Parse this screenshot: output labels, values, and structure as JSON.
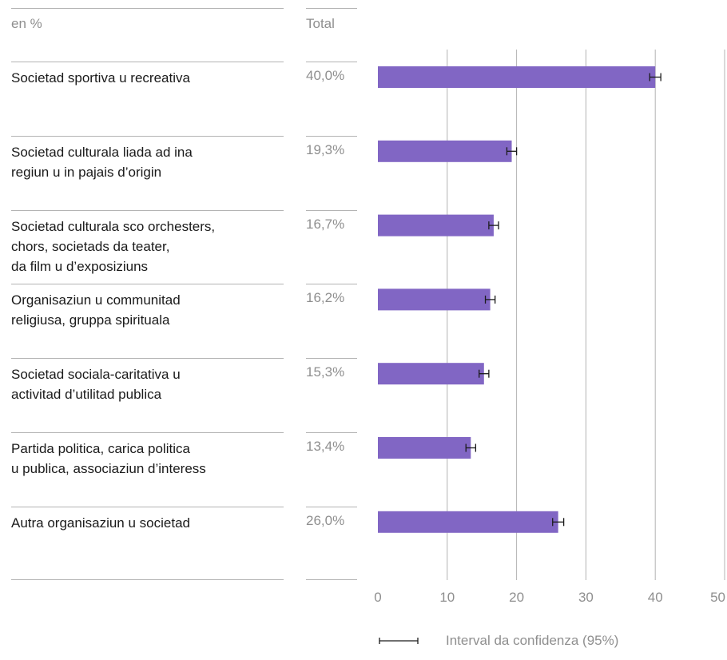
{
  "header": {
    "unit_label": "en %",
    "total_label": "Total"
  },
  "legend": {
    "ci_label": "Interval da confidenza (95%)"
  },
  "chart_data": {
    "type": "bar",
    "orientation": "horizontal",
    "categories": [
      "Societad sportiva u recreativa",
      "Societad culturala liada ad ina regiun u in pajais d’origin",
      "Societad culturala sco orchesters, chors, societads da teater, da film u d’exposiziuns",
      "Organisaziun u communitad religiusa, gruppa spirituala",
      "Societad sociala-caritativa u activitad d’utilitad publica",
      "Partida politica, carica politica u publica, associaziun d’interess",
      "Autra organisaziun u societad"
    ],
    "category_lines": [
      [
        "Societad sportiva u recreativa"
      ],
      [
        "Societad culturala liada ad ina",
        "regiun u in pajais d’origin"
      ],
      [
        "Societad culturala sco orchesters,",
        "chors, societads da teater,",
        "da film u d’exposiziuns"
      ],
      [
        "Organisaziun u communitad",
        "religiusa, gruppa spirituala"
      ],
      [
        "Societad sociala-caritativa u",
        "activitad d’utilitad publica"
      ],
      [
        "Partida politica, carica politica",
        "u publica, associaziun d’interess"
      ],
      [
        "Autra organisaziun u societad"
      ]
    ],
    "values": [
      40.0,
      19.3,
      16.7,
      16.2,
      15.3,
      13.4,
      26.0
    ],
    "value_labels": [
      "40,0%",
      "19,3%",
      "16,7%",
      "16,2%",
      "15,3%",
      "13,4%",
      "26,0%"
    ],
    "ci_low": [
      39.2,
      18.6,
      16.0,
      15.5,
      14.6,
      12.7,
      25.2
    ],
    "ci_high": [
      40.8,
      20.0,
      17.4,
      16.9,
      16.0,
      14.1,
      26.8
    ],
    "xlim": [
      0,
      50
    ],
    "xticks": [
      0,
      10,
      20,
      30,
      40,
      50
    ],
    "xtick_labels": [
      "0",
      "10",
      "20",
      "30",
      "40",
      "50"
    ],
    "grid": true,
    "bar_color": "#8166c4",
    "title": "",
    "xlabel": "",
    "ylabel": ""
  }
}
